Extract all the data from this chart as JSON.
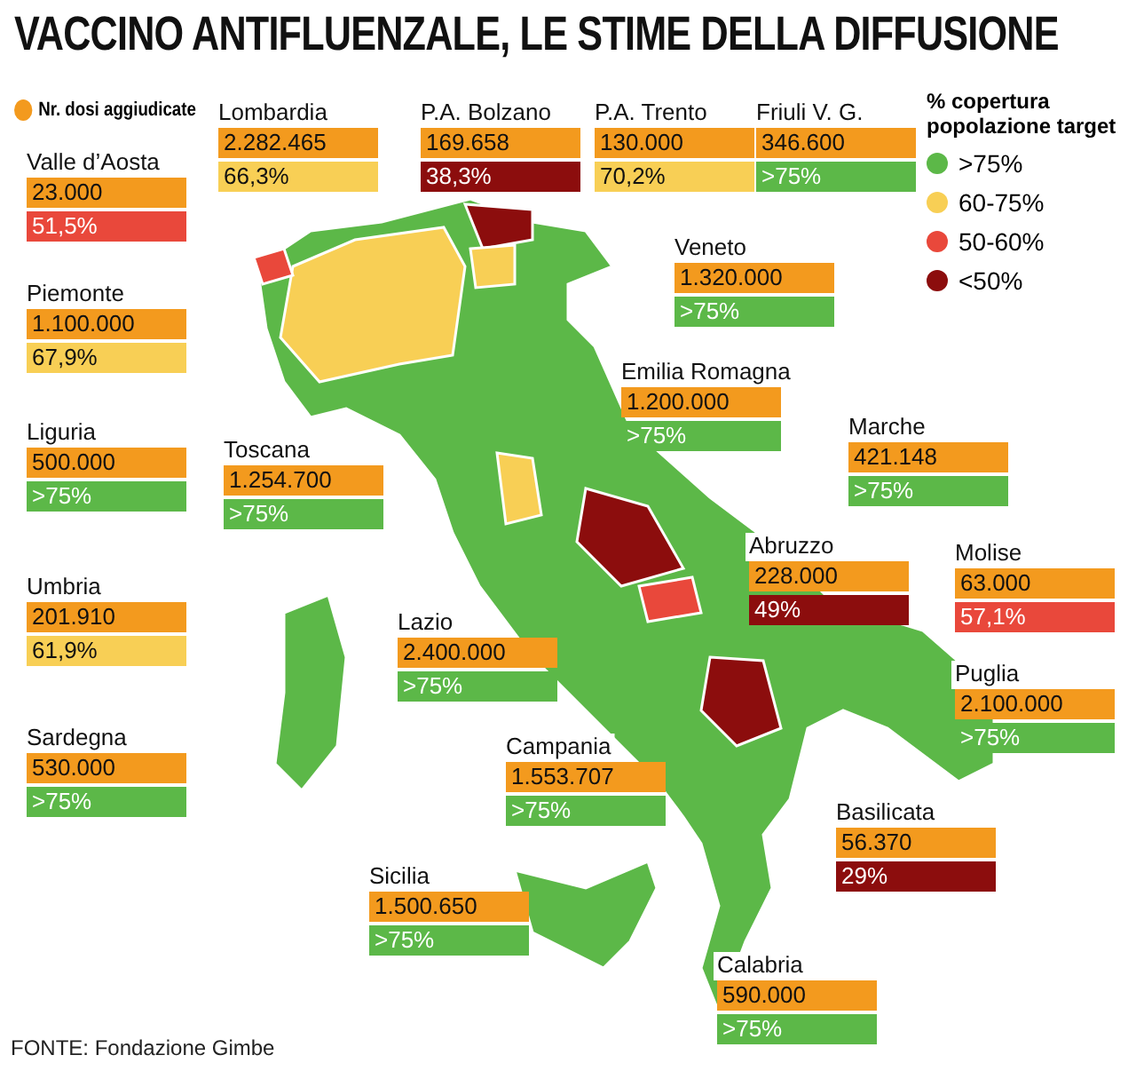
{
  "chart_data": {
    "type": "other",
    "title": "VACCINO ANTIFLUENZALE, LE STIME DELLA DIFFUSIONE",
    "legend": "top right",
    "legend_title": "% copertura popolazione target",
    "categories": [
      "Lombardia",
      "P.A. Bolzano",
      "P.A. Trento",
      "Friuli V. G.",
      "Valle d’Aosta",
      "Veneto",
      "Piemonte",
      "Emilia Romagna",
      "Marche",
      "Liguria",
      "Toscana",
      "Abruzzo",
      "Molise",
      "Umbria",
      "Lazio",
      "Puglia",
      "Sardegna",
      "Campania",
      "Basilicata",
      "Sicilia",
      "Calabria"
    ],
    "series": [
      {
        "name": "Nr. dosi aggiudicate",
        "color": "#f39a1e",
        "values": [
          2282465,
          169658,
          130000,
          346600,
          23000,
          1320000,
          1100000,
          1200000,
          421148,
          500000,
          1254700,
          228000,
          63000,
          201910,
          2400000,
          2100000,
          530000,
          1553707,
          56370,
          1500650,
          590000
        ],
        "value_labels": [
          "2.282.465",
          "169.658",
          "130.000",
          "346.600",
          "23.000",
          "1.320.000",
          "1.100.000",
          "1.200.000",
          "421.148",
          "500.000",
          "1.254.700",
          "228.000",
          "63.000",
          "201.910",
          "2.400.000",
          "2.100.000",
          "530.000",
          "1.553.707",
          "56.370",
          "1.500.650",
          "590.000"
        ]
      },
      {
        "name": ">75%",
        "color": "#5cb848",
        "values": [
          null,
          null,
          null,
          null,
          null,
          null,
          null,
          null,
          null,
          null,
          null,
          null,
          null,
          null,
          null,
          null,
          null,
          null,
          null,
          null,
          null
        ],
        "value_labels": [
          null,
          null,
          null,
          ">75%",
          null,
          ">75%",
          null,
          ">75%",
          ">75%",
          ">75%",
          ">75%",
          null,
          null,
          null,
          ">75%",
          ">75%",
          ">75%",
          ">75%",
          null,
          ">75%",
          ">75%"
        ]
      },
      {
        "name": "60-75%",
        "color": "#f8cf55",
        "values": [
          66.3,
          null,
          70.2,
          null,
          null,
          null,
          67.9,
          null,
          null,
          null,
          null,
          null,
          null,
          61.9,
          null,
          null,
          null,
          null,
          null,
          null,
          null
        ],
        "value_labels": [
          "66,3%",
          null,
          "70,2%",
          null,
          null,
          null,
          "67,9%",
          null,
          null,
          null,
          null,
          null,
          null,
          "61,9%",
          null,
          null,
          null,
          null,
          null,
          null,
          null
        ]
      },
      {
        "name": "50-60%",
        "color": "#e9483b",
        "values": [
          null,
          null,
          null,
          null,
          51.5,
          null,
          null,
          null,
          null,
          null,
          null,
          null,
          57.1,
          null,
          null,
          null,
          null,
          null,
          null,
          null,
          null
        ],
        "value_labels": [
          null,
          null,
          null,
          null,
          "51,5%",
          null,
          null,
          null,
          null,
          null,
          null,
          null,
          "57,1%",
          null,
          null,
          null,
          null,
          null,
          null,
          null,
          null
        ]
      },
      {
        "name": "<50%",
        "color": "#8c0d0d",
        "values": [
          null,
          38.3,
          null,
          null,
          null,
          null,
          null,
          null,
          null,
          null,
          null,
          49,
          null,
          null,
          null,
          null,
          null,
          null,
          29,
          null,
          null
        ],
        "value_labels": [
          null,
          "38,3%",
          null,
          null,
          null,
          null,
          null,
          null,
          null,
          null,
          null,
          "49%",
          null,
          null,
          null,
          null,
          null,
          null,
          "29%",
          null,
          null
        ]
      }
    ],
    "annotations": [
      "FONTE: Fondazione Gimbe"
    ]
  }
}
